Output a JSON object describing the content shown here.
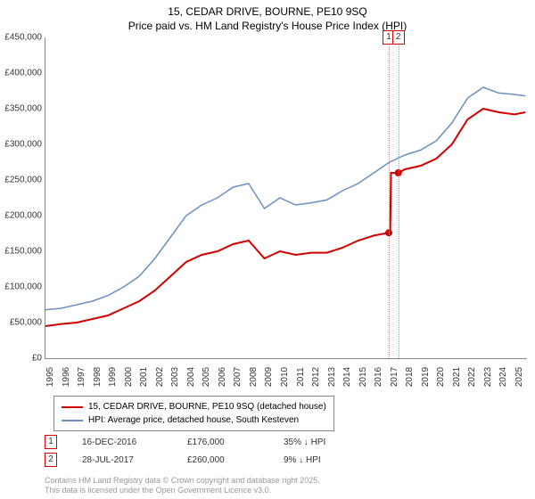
{
  "title_line1": "15, CEDAR DRIVE, BOURNE, PE10 9SQ",
  "title_line2": "Price paid vs. HM Land Registry's House Price Index (HPI)",
  "chart": {
    "type": "line",
    "x_years": [
      1995,
      1996,
      1997,
      1998,
      1999,
      2000,
      2001,
      2002,
      2003,
      2004,
      2005,
      2006,
      2007,
      2008,
      2009,
      2010,
      2011,
      2012,
      2013,
      2014,
      2015,
      2016,
      2017,
      2018,
      2019,
      2020,
      2021,
      2022,
      2023,
      2024,
      2025
    ],
    "x_start": 1995,
    "x_end": 2025.8,
    "ylim": [
      0,
      450000
    ],
    "ytick_step": 50000,
    "ytick_labels": [
      "£0",
      "£50,000",
      "£100,000",
      "£150,000",
      "£200,000",
      "£250,000",
      "£300,000",
      "£350,000",
      "£400,000",
      "£450,000"
    ],
    "background_color": "#ffffff",
    "series": [
      {
        "name": "price_paid",
        "label": "15, CEDAR DRIVE, BOURNE, PE10 9SQ (detached house)",
        "color": "#d00000",
        "line_width": 2,
        "points": [
          [
            1995,
            45000
          ],
          [
            1996,
            48000
          ],
          [
            1997,
            50000
          ],
          [
            1998,
            55000
          ],
          [
            1999,
            60000
          ],
          [
            2000,
            70000
          ],
          [
            2001,
            80000
          ],
          [
            2002,
            95000
          ],
          [
            2003,
            115000
          ],
          [
            2004,
            135000
          ],
          [
            2005,
            145000
          ],
          [
            2006,
            150000
          ],
          [
            2007,
            160000
          ],
          [
            2008,
            165000
          ],
          [
            2009,
            140000
          ],
          [
            2010,
            150000
          ],
          [
            2011,
            145000
          ],
          [
            2012,
            148000
          ],
          [
            2013,
            148000
          ],
          [
            2014,
            155000
          ],
          [
            2015,
            165000
          ],
          [
            2016,
            172000
          ],
          [
            2016.96,
            176000
          ],
          [
            2017.05,
            178000
          ],
          [
            2017.1,
            260000
          ],
          [
            2017.57,
            260000
          ],
          [
            2018,
            265000
          ],
          [
            2019,
            270000
          ],
          [
            2020,
            280000
          ],
          [
            2021,
            300000
          ],
          [
            2022,
            335000
          ],
          [
            2023,
            350000
          ],
          [
            2024,
            345000
          ],
          [
            2025,
            342000
          ],
          [
            2025.7,
            345000
          ]
        ]
      },
      {
        "name": "hpi",
        "label": "HPI: Average price, detached house, South Kesteven",
        "color": "#6a8fc5",
        "line_width": 1.5,
        "points": [
          [
            1995,
            68000
          ],
          [
            1996,
            70000
          ],
          [
            1997,
            75000
          ],
          [
            1998,
            80000
          ],
          [
            1999,
            88000
          ],
          [
            2000,
            100000
          ],
          [
            2001,
            115000
          ],
          [
            2002,
            140000
          ],
          [
            2003,
            170000
          ],
          [
            2004,
            200000
          ],
          [
            2005,
            215000
          ],
          [
            2006,
            225000
          ],
          [
            2007,
            240000
          ],
          [
            2008,
            245000
          ],
          [
            2009,
            210000
          ],
          [
            2010,
            225000
          ],
          [
            2011,
            215000
          ],
          [
            2012,
            218000
          ],
          [
            2013,
            222000
          ],
          [
            2014,
            235000
          ],
          [
            2015,
            245000
          ],
          [
            2016,
            260000
          ],
          [
            2017,
            275000
          ],
          [
            2018,
            285000
          ],
          [
            2019,
            292000
          ],
          [
            2020,
            305000
          ],
          [
            2021,
            330000
          ],
          [
            2022,
            365000
          ],
          [
            2023,
            380000
          ],
          [
            2024,
            372000
          ],
          [
            2025,
            370000
          ],
          [
            2025.7,
            368000
          ]
        ]
      }
    ],
    "markers": [
      {
        "n": "1",
        "x": 2016.96,
        "y": 176000,
        "date": "16-DEC-2016",
        "price": "£176,000",
        "note": "35% ↓ HPI"
      },
      {
        "n": "2",
        "x": 2017.57,
        "y": 260000,
        "date": "28-JUL-2017",
        "price": "£260,000",
        "note": "9% ↓ HPI"
      }
    ]
  },
  "copyright_line1": "Contains HM Land Registry data © Crown copyright and database right 2025.",
  "copyright_line2": "This data is licensed under the Open Government Licence v3.0."
}
